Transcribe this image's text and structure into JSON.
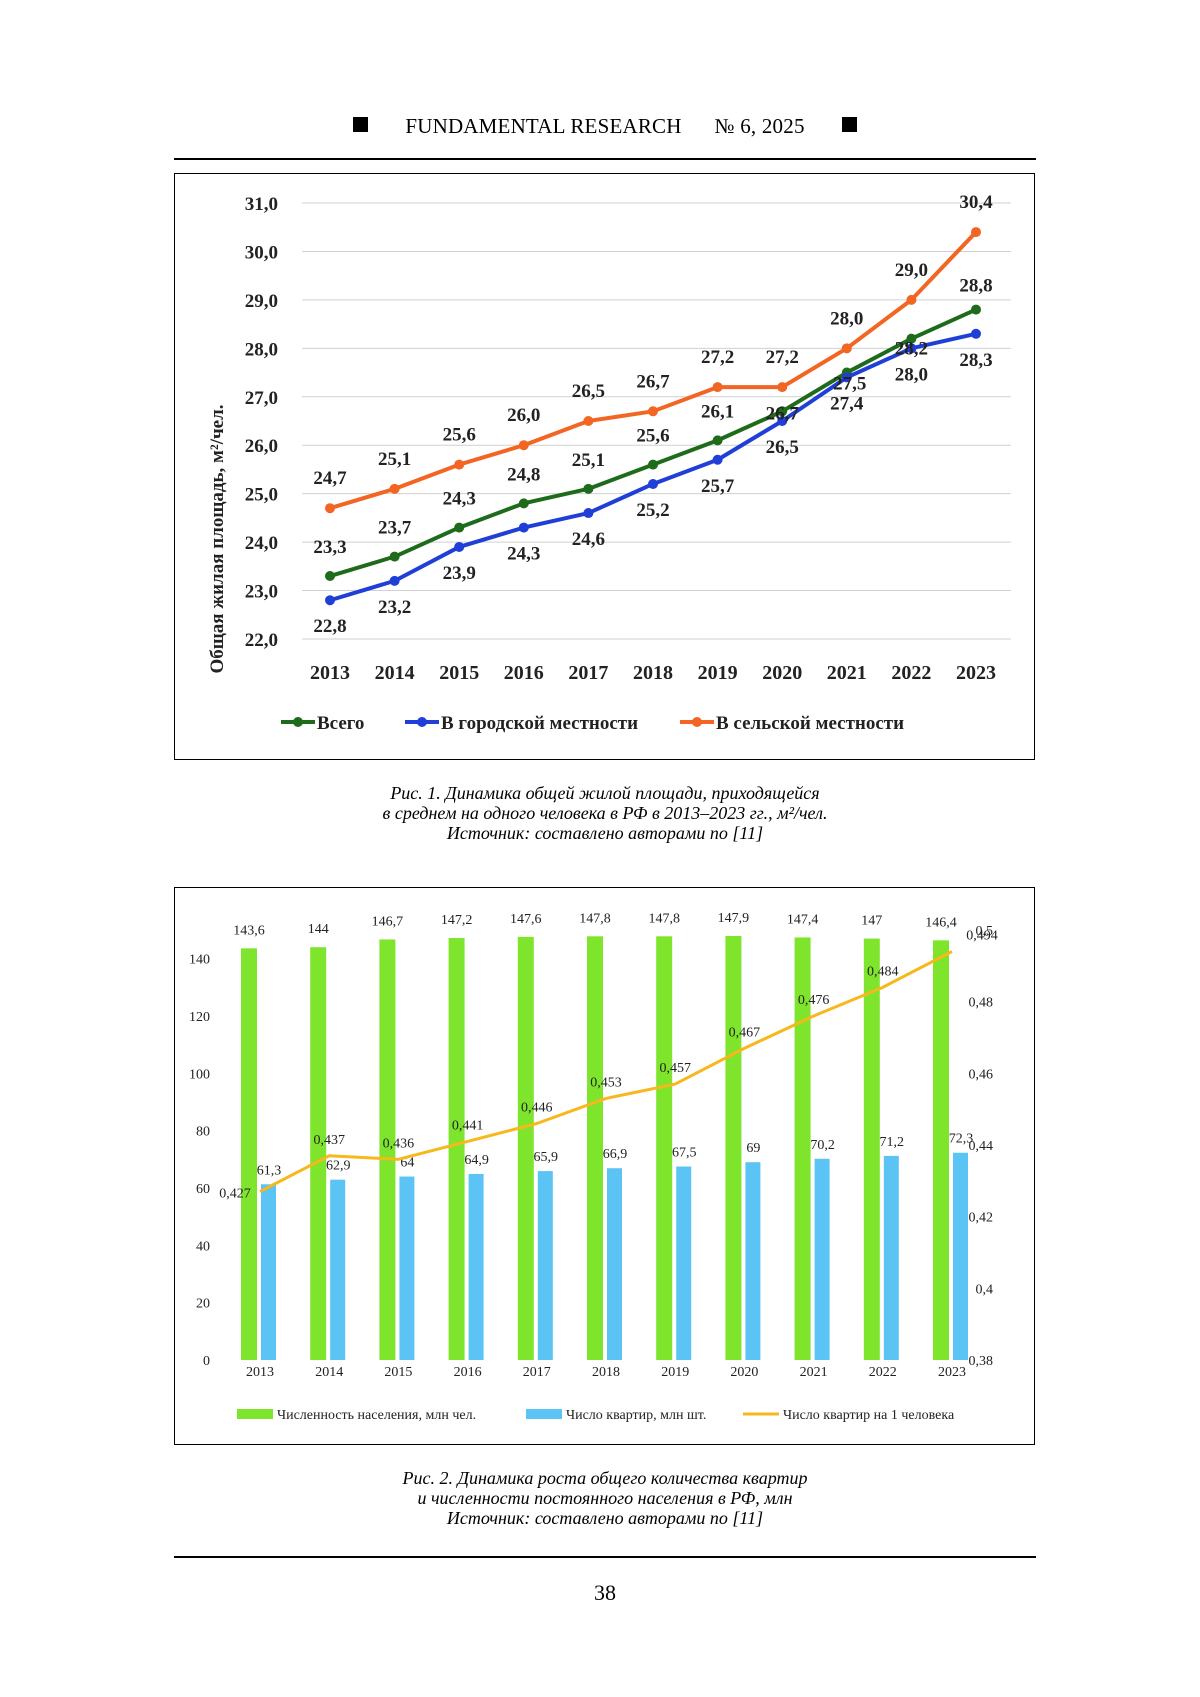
{
  "header": {
    "journal": "FUNDAMENTAL RESEARCH",
    "issue": "№ 6,",
    "year": "2025"
  },
  "figure1": {
    "caption_line1": "Рис. 1. Динамика общей жилой площади, приходящейся",
    "caption_line2": "в среднем на одного человека в РФ в 2013–2023 гг., м²/чел.",
    "caption_line3": "Источник: составлено авторами по [11]"
  },
  "figure2": {
    "caption_line1": "Рис. 2. Динамика роста общего количества квартир",
    "caption_line2": "и численности постоянного населения в РФ, млн",
    "caption_line3": "Источник: составлено авторами по [11]"
  },
  "page_number": "38",
  "chart_data": [
    {
      "type": "line",
      "title": "",
      "xlabel": "",
      "ylabel": "Общая жилая площадь, м²/чел.",
      "x": [
        "2013",
        "2014",
        "2015",
        "2016",
        "2017",
        "2018",
        "2019",
        "2020",
        "2021",
        "2022",
        "2023"
      ],
      "ylim": [
        22.0,
        31.0
      ],
      "yticks": [
        "22,0",
        "23,0",
        "24,0",
        "25,0",
        "26,0",
        "27,0",
        "28,0",
        "29,0",
        "30,0",
        "31,0"
      ],
      "grid": true,
      "legend": "bottom",
      "series": [
        {
          "name": "Всего",
          "color": "#1e6b1b",
          "values": [
            23.3,
            23.7,
            24.3,
            24.8,
            25.1,
            25.6,
            26.1,
            26.7,
            27.5,
            28.2,
            28.8
          ],
          "labels": [
            "23,3",
            "23,7",
            "24,3",
            "24,8",
            "25,1",
            "25,6",
            "26,1",
            "26,7",
            "27,5",
            "28,2",
            "28,8"
          ]
        },
        {
          "name": "В городской местности",
          "color": "#1f3fd6",
          "values": [
            22.8,
            23.2,
            23.9,
            24.3,
            24.6,
            25.2,
            25.7,
            26.5,
            27.4,
            28.0,
            28.3
          ],
          "labels": [
            "22,8",
            "23,2",
            "23,9",
            "24,3",
            "24,6",
            "25,2",
            "25,7",
            "26,5",
            "27,4",
            "28,0",
            "28,3"
          ]
        },
        {
          "name": "В сельской местности",
          "color": "#f26522",
          "values": [
            24.7,
            25.1,
            25.6,
            26.0,
            26.5,
            26.7,
            27.2,
            27.2,
            28.0,
            29.0,
            30.4
          ],
          "labels": [
            "24,7",
            "25,1",
            "25,6",
            "26,0",
            "26,5",
            "26,7",
            "27,2",
            "27,2",
            "28,0",
            "29,0",
            "30,4"
          ]
        }
      ]
    },
    {
      "type": "bar",
      "title": "",
      "categories": [
        "2013",
        "2014",
        "2015",
        "2016",
        "2017",
        "2018",
        "2019",
        "2020",
        "2021",
        "2022",
        "2023"
      ],
      "ylim": [
        0,
        150
      ],
      "yticks": [
        "0",
        "20",
        "40",
        "60",
        "80",
        "100",
        "120",
        "140"
      ],
      "y2lim": [
        0.38,
        0.5
      ],
      "y2ticks": [
        "0,38",
        "0,4",
        "0,42",
        "0,44",
        "0,46",
        "0,48",
        "0,5"
      ],
      "grid": false,
      "legend": "bottom",
      "series": [
        {
          "name": "Численность населения, млн чел.",
          "type": "bar",
          "axis": "left",
          "color": "#7ee52c",
          "values": [
            143.6,
            144,
            146.7,
            147.2,
            147.6,
            147.8,
            147.8,
            147.9,
            147.4,
            147,
            146.4
          ],
          "labels": [
            "143,6",
            "144",
            "146,7",
            "147,2",
            "147,6",
            "147,8",
            "147,8",
            "147,9",
            "147,4",
            "147",
            "146,4"
          ]
        },
        {
          "name": "Число квартир, млн шт.",
          "type": "bar",
          "axis": "left",
          "color": "#5bc4f5",
          "values": [
            61.3,
            62.9,
            64,
            64.9,
            65.9,
            66.9,
            67.5,
            69,
            70.2,
            71.2,
            72.3
          ],
          "labels": [
            "61,3",
            "62,9",
            "64",
            "64,9",
            "65,9",
            "66,9",
            "67,5",
            "69",
            "70,2",
            "71,2",
            "72,3"
          ]
        },
        {
          "name": "Число квартир на 1 человека",
          "type": "line",
          "axis": "right",
          "color": "#f6b81c",
          "values": [
            0.427,
            0.437,
            0.436,
            0.441,
            0.446,
            0.453,
            0.457,
            0.467,
            0.476,
            0.484,
            0.494
          ],
          "labels": [
            "0,427",
            "0,437",
            "0,436",
            "0,441",
            "0,446",
            "0,453",
            "0,457",
            "0,467",
            "0,476",
            "0,484",
            "0,494"
          ]
        }
      ]
    }
  ]
}
